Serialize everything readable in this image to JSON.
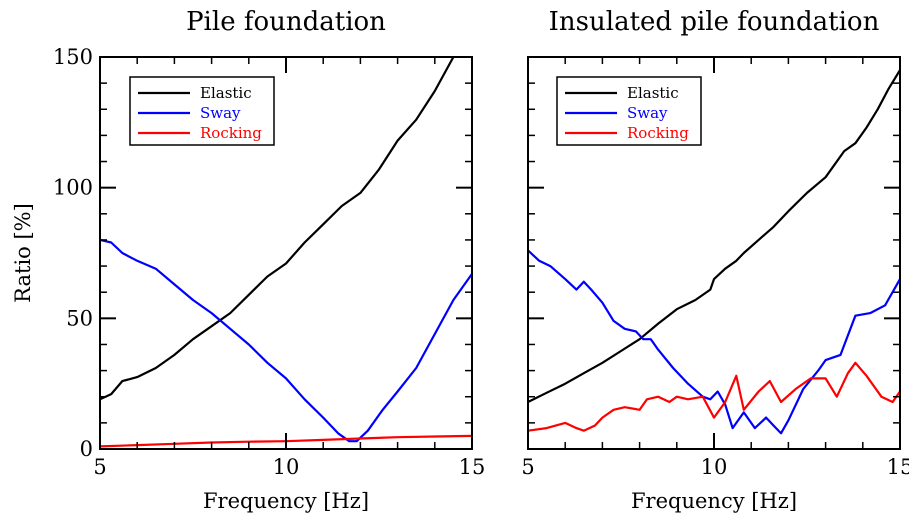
{
  "chart_data": [
    {
      "type": "line",
      "title": "Pile foundation",
      "xlabel": "Frequency [Hz]",
      "ylabel": "Ratio [%]",
      "xlim": [
        5,
        15
      ],
      "ylim": [
        0,
        150
      ],
      "xticks": [
        5,
        10,
        15
      ],
      "yticks": [
        0,
        50,
        100,
        150
      ],
      "xtick_labels": [
        "5",
        "10",
        "15"
      ],
      "ytick_labels": [
        "0",
        "50",
        "100",
        "150"
      ],
      "legend_position": "top-left",
      "series": [
        {
          "name": "Elastic",
          "color": "#000000",
          "points": [
            [
              5,
              19
            ],
            [
              5.3,
              21
            ],
            [
              5.6,
              26
            ],
            [
              6.0,
              27.5
            ],
            [
              6.5,
              31
            ],
            [
              7.0,
              36
            ],
            [
              7.5,
              42
            ],
            [
              8.0,
              47
            ],
            [
              8.5,
              52
            ],
            [
              9.0,
              59
            ],
            [
              9.5,
              66
            ],
            [
              10.0,
              71
            ],
            [
              10.5,
              79
            ],
            [
              11.0,
              86
            ],
            [
              11.5,
              93
            ],
            [
              12.0,
              98
            ],
            [
              12.5,
              107
            ],
            [
              13.0,
              118
            ],
            [
              13.5,
              126
            ],
            [
              14.0,
              137
            ],
            [
              14.5,
              150
            ]
          ]
        },
        {
          "name": "Sway",
          "color": "#0000ff",
          "points": [
            [
              5,
              80
            ],
            [
              5.3,
              79
            ],
            [
              5.6,
              75
            ],
            [
              6.0,
              72
            ],
            [
              6.5,
              69
            ],
            [
              7.0,
              63
            ],
            [
              7.5,
              57
            ],
            [
              8.0,
              52
            ],
            [
              8.5,
              46
            ],
            [
              9.0,
              40
            ],
            [
              9.5,
              33
            ],
            [
              10.0,
              27
            ],
            [
              10.5,
              19
            ],
            [
              11.0,
              12
            ],
            [
              11.4,
              6
            ],
            [
              11.7,
              3
            ],
            [
              11.9,
              3
            ],
            [
              12.2,
              7
            ],
            [
              12.6,
              15
            ],
            [
              13.0,
              22
            ],
            [
              13.5,
              31
            ],
            [
              14.0,
              44
            ],
            [
              14.5,
              57
            ],
            [
              15.0,
              67
            ]
          ]
        },
        {
          "name": "Rocking",
          "color": "#ff0000",
          "points": [
            [
              5,
              1
            ],
            [
              6,
              1.5
            ],
            [
              7,
              2
            ],
            [
              8,
              2.5
            ],
            [
              9,
              2.8
            ],
            [
              10,
              3
            ],
            [
              11,
              3.5
            ],
            [
              12,
              4
            ],
            [
              13,
              4.5
            ],
            [
              14,
              4.8
            ],
            [
              15,
              5
            ]
          ]
        }
      ]
    },
    {
      "type": "line",
      "title": "Insulated pile foundation",
      "xlabel": "Frequency [Hz]",
      "ylabel": "",
      "xlim": [
        5,
        15
      ],
      "ylim": [
        0,
        150
      ],
      "xticks": [
        5,
        10,
        15
      ],
      "yticks": [
        0,
        50,
        100,
        150
      ],
      "xtick_labels": [
        "5",
        "10",
        "15"
      ],
      "ytick_labels": [],
      "legend_position": "top-left",
      "series": [
        {
          "name": "Elastic",
          "color": "#000000",
          "points": [
            [
              5,
              18
            ],
            [
              5.5,
              21.5
            ],
            [
              6.0,
              25
            ],
            [
              6.5,
              29
            ],
            [
              7.0,
              33
            ],
            [
              7.5,
              37.5
            ],
            [
              8.0,
              42
            ],
            [
              8.5,
              48
            ],
            [
              9.0,
              53.5
            ],
            [
              9.5,
              57
            ],
            [
              9.9,
              61
            ],
            [
              10.0,
              65
            ],
            [
              10.3,
              69
            ],
            [
              10.6,
              72
            ],
            [
              10.8,
              75
            ],
            [
              11.2,
              80
            ],
            [
              11.6,
              85
            ],
            [
              12.0,
              91
            ],
            [
              12.5,
              98
            ],
            [
              13.0,
              104
            ],
            [
              13.5,
              114
            ],
            [
              13.8,
              117
            ],
            [
              14.1,
              123
            ],
            [
              14.4,
              130
            ],
            [
              14.7,
              138
            ],
            [
              15.0,
              145
            ]
          ]
        },
        {
          "name": "Sway",
          "color": "#0000ff",
          "points": [
            [
              5,
              76
            ],
            [
              5.3,
              72
            ],
            [
              5.6,
              70
            ],
            [
              6.0,
              65
            ],
            [
              6.3,
              61
            ],
            [
              6.5,
              64
            ],
            [
              6.7,
              61
            ],
            [
              7.0,
              56
            ],
            [
              7.3,
              49
            ],
            [
              7.6,
              46
            ],
            [
              7.9,
              45
            ],
            [
              8.1,
              42
            ],
            [
              8.3,
              42
            ],
            [
              8.5,
              38
            ],
            [
              8.9,
              31
            ],
            [
              9.3,
              25
            ],
            [
              9.7,
              20
            ],
            [
              9.9,
              19
            ],
            [
              10.1,
              22
            ],
            [
              10.3,
              17
            ],
            [
              10.5,
              8
            ],
            [
              10.8,
              14
            ],
            [
              11.1,
              8
            ],
            [
              11.4,
              12
            ],
            [
              11.6,
              9
            ],
            [
              11.8,
              6
            ],
            [
              12.0,
              11
            ],
            [
              12.4,
              23
            ],
            [
              12.8,
              30
            ],
            [
              13.0,
              34
            ],
            [
              13.4,
              36
            ],
            [
              13.8,
              51
            ],
            [
              14.2,
              52
            ],
            [
              14.6,
              55
            ],
            [
              15.0,
              65
            ]
          ]
        },
        {
          "name": "Rocking",
          "color": "#ff0000",
          "points": [
            [
              5,
              7
            ],
            [
              5.5,
              8
            ],
            [
              6.0,
              10
            ],
            [
              6.3,
              8
            ],
            [
              6.5,
              7
            ],
            [
              6.8,
              9
            ],
            [
              7.0,
              12
            ],
            [
              7.3,
              15
            ],
            [
              7.6,
              16
            ],
            [
              8.0,
              15
            ],
            [
              8.2,
              19
            ],
            [
              8.5,
              20
            ],
            [
              8.8,
              18
            ],
            [
              9.0,
              20
            ],
            [
              9.3,
              19
            ],
            [
              9.7,
              20
            ],
            [
              10.0,
              12
            ],
            [
              10.3,
              18
            ],
            [
              10.6,
              28
            ],
            [
              10.8,
              15
            ],
            [
              11.2,
              22
            ],
            [
              11.5,
              26
            ],
            [
              11.8,
              18
            ],
            [
              12.2,
              23
            ],
            [
              12.6,
              27
            ],
            [
              13.0,
              27
            ],
            [
              13.3,
              20
            ],
            [
              13.6,
              29
            ],
            [
              13.8,
              33
            ],
            [
              14.1,
              28
            ],
            [
              14.5,
              20
            ],
            [
              14.8,
              18
            ],
            [
              15.0,
              22
            ]
          ]
        }
      ]
    }
  ]
}
